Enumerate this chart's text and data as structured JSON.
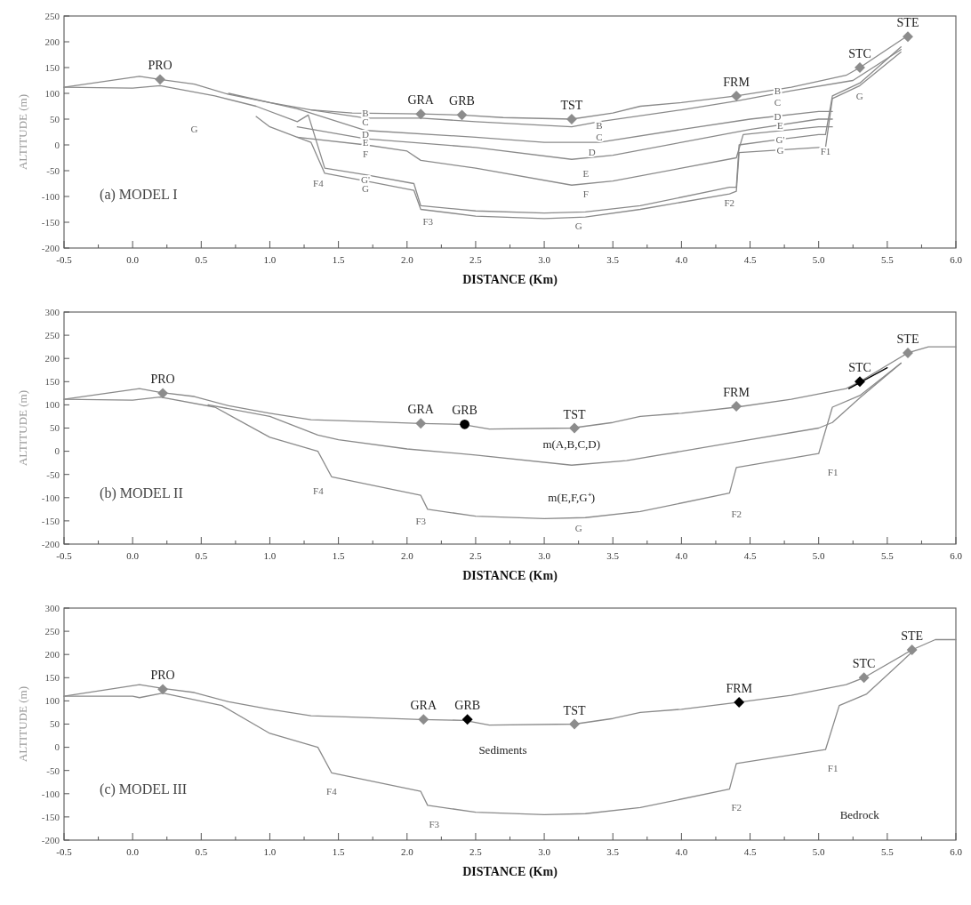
{
  "chart_data": [
    {
      "type": "line",
      "xlabel": "DISTANCE (Km)",
      "ylabel": "ALTITUDE (m)",
      "xlim": [
        -0.5,
        6.0
      ],
      "ylim": [
        -200,
        250
      ],
      "xticks": [
        {
          "value": -0.5,
          "label": "-0.5"
        },
        {
          "value": -0.25,
          "label": null
        },
        {
          "value": 0,
          "label": "0.0"
        },
        {
          "value": 0.25,
          "label": null
        },
        {
          "value": 0.5,
          "label": "0.5"
        },
        {
          "value": 0.75,
          "label": null
        },
        {
          "value": 1,
          "label": "1.0"
        },
        {
          "value": 1.25,
          "label": null
        },
        {
          "value": 1.5,
          "label": "1.5"
        },
        {
          "value": 1.75,
          "label": null
        },
        {
          "value": 2,
          "label": "2.0"
        },
        {
          "value": 2.25,
          "label": null
        },
        {
          "value": 2.5,
          "label": "2.5"
        },
        {
          "value": 2.75,
          "label": null
        },
        {
          "value": 3,
          "label": "3.0"
        },
        {
          "value": 3.25,
          "label": null
        },
        {
          "value": 3.5,
          "label": "3.5"
        },
        {
          "value": 3.75,
          "label": null
        },
        {
          "value": 4,
          "label": "4.0"
        },
        {
          "value": 4.25,
          "label": null
        },
        {
          "value": 4.5,
          "label": "4.5"
        },
        {
          "value": 4.75,
          "label": null
        },
        {
          "value": 5,
          "label": "5.0"
        },
        {
          "value": 5.25,
          "label": null
        },
        {
          "value": 5.5,
          "label": "5.5"
        },
        {
          "value": 5.75,
          "label": null
        },
        {
          "value": 6,
          "label": "6.0"
        }
      ],
      "yticks": [
        -200,
        -150,
        -100,
        -50,
        0,
        50,
        100,
        150,
        200,
        250
      ],
      "series": [
        {
          "color": "#8a8a8a",
          "x": [
            -0.5,
            0.05,
            0.2,
            0.45,
            0.7,
            1.0,
            1.3,
            1.6,
            2.1,
            2.4,
            2.7,
            3.2,
            3.5,
            3.7,
            4.0,
            4.4,
            4.8,
            5.2,
            5.3,
            5.65
          ],
          "values": [
            112,
            133,
            127,
            118,
            98,
            82,
            68,
            62,
            60,
            58,
            53,
            50,
            62,
            75,
            82,
            95,
            112,
            135,
            150,
            212
          ]
        },
        {
          "color": "#8a8a8a",
          "x": [
            1.3,
            1.7,
            2.1,
            2.5,
            3.2,
            3.4,
            4.0,
            4.4,
            4.8,
            5.25,
            5.6
          ],
          "values": [
            68,
            52,
            52,
            45,
            35,
            45,
            68,
            85,
            105,
            125,
            185
          ]
        },
        {
          "color": "#8a8a8a",
          "x": [
            0.7,
            1.2,
            1.7,
            2.5,
            3.0,
            3.4,
            4.0,
            4.5,
            5.0,
            5.1
          ],
          "values": [
            100,
            70,
            28,
            15,
            5,
            5,
            30,
            50,
            65,
            65
          ]
        },
        {
          "color": "#8a8a8a",
          "x": [
            1.2,
            1.7,
            2.5,
            3.2,
            3.5,
            4.0,
            4.5,
            5.0,
            5.1
          ],
          "values": [
            35,
            12,
            -5,
            -28,
            -20,
            5,
            30,
            50,
            50
          ]
        },
        {
          "color": "#8a8a8a",
          "x": [
            1.2,
            1.7,
            2.0,
            2.1,
            2.5,
            3.2,
            3.5,
            4.0,
            4.4,
            4.45,
            5.0,
            5.1
          ],
          "values": [
            15,
            0,
            -12,
            -30,
            -45,
            -78,
            -70,
            -45,
            -25,
            20,
            35,
            35
          ]
        },
        {
          "color": "#8a8a8a",
          "x": [
            -0.5,
            0.0,
            0.2,
            0.6,
            0.9,
            1.2,
            1.28,
            1.4,
            1.7,
            2.05,
            2.1,
            2.5,
            3.0,
            3.3,
            3.7,
            4.35,
            4.4,
            4.42,
            4.7,
            5.0,
            5.05,
            5.1,
            5.3,
            5.6
          ],
          "values": [
            112,
            110,
            115,
            95,
            75,
            45,
            58,
            -45,
            -58,
            -75,
            -118,
            -128,
            -132,
            -130,
            -118,
            -82,
            -82,
            0,
            10,
            20,
            20,
            95,
            120,
            190
          ]
        },
        {
          "color": "#8a8a8a",
          "x": [
            0.9,
            1.0,
            1.2,
            1.3,
            1.4,
            1.7,
            2.05,
            2.1,
            2.5,
            3.0,
            3.3,
            3.7,
            4.35,
            4.4,
            4.42,
            5.0,
            5.05,
            5.1,
            5.3,
            5.6
          ],
          "values": [
            55,
            35,
            15,
            5,
            -55,
            -70,
            -88,
            -125,
            -138,
            -143,
            -140,
            -125,
            -95,
            -90,
            -15,
            -5,
            -5,
            90,
            115,
            180
          ]
        },
        {
          "type": "scatter",
          "marker": "diamond",
          "color": "#8c8c8c",
          "x": [
            0.2,
            2.1,
            2.4,
            3.2,
            4.4,
            5.3,
            5.65
          ],
          "values": [
            127,
            60,
            58,
            50,
            95,
            150,
            210
          ]
        }
      ],
      "annotations": [
        "(a) MODEL I",
        {
          "text": "PRO",
          "x": 0.2,
          "y": 127
        },
        {
          "text": "GRA",
          "x": 2.1,
          "y": 60
        },
        {
          "text": "GRB",
          "x": 2.4,
          "y": 58
        },
        {
          "text": "TST",
          "x": 3.2,
          "y": 50
        },
        {
          "text": "FRM",
          "x": 4.4,
          "y": 95
        },
        {
          "text": "STC",
          "x": 5.3,
          "y": 150
        },
        {
          "text": "STE",
          "x": 5.65,
          "y": 210
        },
        "G",
        "B",
        "C",
        "D",
        "E",
        "F",
        "G'",
        "G",
        "F4",
        "F3",
        "B",
        "C",
        "D",
        "E",
        "F",
        "G",
        "F2",
        "B",
        "C",
        "D",
        "E",
        "G'",
        "G",
        "F1",
        "G"
      ]
    },
    {
      "type": "line",
      "xlabel": "DISTANCE (Km)",
      "ylabel": "ALTITUDE (m)",
      "xlim": [
        -0.5,
        6.0
      ],
      "ylim": [
        -200,
        300
      ],
      "xticks": [
        {
          "value": -0.5,
          "label": "-0.5"
        },
        {
          "value": -0.25,
          "label": null
        },
        {
          "value": 0,
          "label": "0.0"
        },
        {
          "value": 0.25,
          "label": null
        },
        {
          "value": 0.5,
          "label": "0.5"
        },
        {
          "value": 0.75,
          "label": null
        },
        {
          "value": 1,
          "label": "1.0"
        },
        {
          "value": 1.25,
          "label": null
        },
        {
          "value": 1.5,
          "label": "1.5"
        },
        {
          "value": 1.75,
          "label": null
        },
        {
          "value": 2,
          "label": "2.0"
        },
        {
          "value": 2.25,
          "label": null
        },
        {
          "value": 2.5,
          "label": "2.5"
        },
        {
          "value": 2.75,
          "label": null
        },
        {
          "value": 3,
          "label": "3.0"
        },
        {
          "value": 3.25,
          "label": null
        },
        {
          "value": 3.5,
          "label": "3.5"
        },
        {
          "value": 3.75,
          "label": null
        },
        {
          "value": 4,
          "label": "4.0"
        },
        {
          "value": 4.25,
          "label": null
        },
        {
          "value": 4.5,
          "label": "4.5"
        },
        {
          "value": 4.75,
          "label": null
        },
        {
          "value": 5,
          "label": "5.0"
        },
        {
          "value": 5.25,
          "label": null
        },
        {
          "value": 5.5,
          "label": "5.5"
        },
        {
          "value": 5.75,
          "label": null
        },
        {
          "value": 6,
          "label": "6.0"
        }
      ],
      "yticks": [
        -200,
        -150,
        -100,
        -50,
        0,
        50,
        100,
        150,
        200,
        250,
        300
      ],
      "series": [
        {
          "color": "#8a8a8a",
          "x": [
            -0.5,
            0.05,
            0.2,
            0.45,
            0.7,
            1.0,
            1.3,
            1.6,
            2.1,
            2.4,
            2.6,
            3.2,
            3.5,
            3.7,
            4.0,
            4.4,
            4.8,
            5.2,
            5.3,
            5.65,
            5.8,
            6.0
          ],
          "values": [
            112,
            135,
            127,
            118,
            98,
            82,
            68,
            65,
            60,
            58,
            48,
            50,
            62,
            75,
            82,
            95,
            112,
            135,
            150,
            212,
            225,
            225
          ]
        },
        {
          "color": "#8a8a8a",
          "x": [
            0.55,
            1.0,
            1.35,
            1.5,
            2.0,
            2.5,
            3.2,
            3.6,
            4.0,
            4.4,
            5.0,
            5.1,
            5.3,
            5.6
          ],
          "values": [
            100,
            75,
            35,
            25,
            5,
            -8,
            -30,
            -20,
            0,
            20,
            50,
            62,
            115,
            190
          ]
        },
        {
          "color": "#8a8a8a",
          "x": [
            -0.5,
            0.0,
            0.2,
            0.6,
            1.0,
            1.35,
            1.45,
            2.1,
            2.15,
            2.5,
            3.0,
            3.3,
            3.7,
            4.35,
            4.4,
            5.0,
            5.1,
            5.3,
            5.6
          ],
          "values": [
            112,
            110,
            117,
            95,
            30,
            0,
            -55,
            -95,
            -125,
            -140,
            -145,
            -143,
            -130,
            -90,
            -35,
            -5,
            95,
            120,
            190
          ]
        },
        {
          "color": "#000000",
          "x": [
            5.22,
            5.5
          ],
          "values": [
            135,
            180
          ]
        },
        {
          "type": "scatter",
          "marker": "diamond",
          "color": "#8c8c8c",
          "x": [
            0.22,
            2.1,
            3.22,
            4.4,
            5.65
          ],
          "values": [
            125,
            60,
            50,
            97,
            212
          ]
        },
        {
          "type": "scatter",
          "marker": "circle",
          "color": "#000000",
          "x": [
            2.42
          ],
          "values": [
            58
          ]
        },
        {
          "type": "scatter",
          "marker": "diamond",
          "color": "#000000",
          "x": [
            5.3
          ],
          "values": [
            150
          ]
        }
      ],
      "annotations": [
        "(b) MODEL II",
        {
          "text": "PRO",
          "x": 0.22,
          "y": 125
        },
        {
          "text": "GRA",
          "x": 2.1,
          "y": 60
        },
        {
          "text": "GRB",
          "x": 2.42,
          "y": 58
        },
        {
          "text": "TST",
          "x": 3.22,
          "y": 50
        },
        {
          "text": "FRM",
          "x": 4.4,
          "y": 97
        },
        {
          "text": "STC",
          "x": 5.3,
          "y": 150
        },
        {
          "text": "STE",
          "x": 5.65,
          "y": 212
        },
        "m(A,B,C,D)",
        "m(E,F,G⁺)",
        "F4",
        "F3",
        "G",
        "F2",
        "F1"
      ]
    },
    {
      "type": "line",
      "xlabel": "DISTANCE (Km)",
      "ylabel": "ALTITUDE (m)",
      "xlim": [
        -0.5,
        6.0
      ],
      "ylim": [
        -200,
        300
      ],
      "xticks": [
        {
          "value": -0.5,
          "label": "-0.5"
        },
        {
          "value": -0.25,
          "label": null
        },
        {
          "value": 0,
          "label": "0.0"
        },
        {
          "value": 0.25,
          "label": null
        },
        {
          "value": 0.5,
          "label": "0.5"
        },
        {
          "value": 0.75,
          "label": null
        },
        {
          "value": 1,
          "label": "1.0"
        },
        {
          "value": 1.25,
          "label": null
        },
        {
          "value": 1.5,
          "label": "1.5"
        },
        {
          "value": 1.75,
          "label": null
        },
        {
          "value": 2,
          "label": "2.0"
        },
        {
          "value": 2.25,
          "label": null
        },
        {
          "value": 2.5,
          "label": "2.5"
        },
        {
          "value": 2.75,
          "label": null
        },
        {
          "value": 3,
          "label": "3.0"
        },
        {
          "value": 3.25,
          "label": null
        },
        {
          "value": 3.5,
          "label": "3.5"
        },
        {
          "value": 3.75,
          "label": null
        },
        {
          "value": 4,
          "label": "4.0"
        },
        {
          "value": 4.25,
          "label": null
        },
        {
          "value": 4.5,
          "label": "4.5"
        },
        {
          "value": 4.75,
          "label": null
        },
        {
          "value": 5,
          "label": "5.0"
        },
        {
          "value": 5.25,
          "label": null
        },
        {
          "value": 5.5,
          "label": "5.5"
        },
        {
          "value": 5.75,
          "label": null
        },
        {
          "value": 6,
          "label": "6.0"
        }
      ],
      "yticks": [
        -200,
        -150,
        -100,
        -50,
        0,
        50,
        100,
        150,
        200,
        250,
        300
      ],
      "series": [
        {
          "color": "#8a8a8a",
          "x": [
            -0.5,
            0.05,
            0.22,
            0.45,
            0.7,
            1.0,
            1.3,
            1.6,
            2.1,
            2.42,
            2.6,
            3.22,
            3.5,
            3.7,
            4.0,
            4.42,
            4.8,
            5.2,
            5.33,
            5.68,
            5.85,
            6.0
          ],
          "values": [
            110,
            135,
            127,
            118,
            98,
            82,
            68,
            65,
            60,
            58,
            48,
            50,
            62,
            75,
            82,
            97,
            112,
            135,
            150,
            210,
            232,
            232
          ]
        },
        {
          "color": "#8a8a8a",
          "x": [
            -0.5,
            0.0,
            0.05,
            0.22,
            0.65,
            1.0,
            1.35,
            1.45,
            2.1,
            2.15,
            2.5,
            3.0,
            3.3,
            3.7,
            4.35,
            4.4,
            5.05,
            5.15,
            5.35,
            5.68
          ],
          "values": [
            110,
            110,
            107,
            117,
            90,
            30,
            0,
            -55,
            -95,
            -125,
            -140,
            -145,
            -143,
            -130,
            -90,
            -35,
            -5,
            90,
            115,
            205
          ]
        },
        {
          "type": "scatter",
          "marker": "diamond",
          "color": "#8c8c8c",
          "x": [
            0.22,
            2.12,
            3.22,
            5.33,
            5.68
          ],
          "values": [
            125,
            60,
            50,
            150,
            210
          ]
        },
        {
          "type": "scatter",
          "marker": "diamond",
          "color": "#000000",
          "x": [
            2.44,
            4.42
          ],
          "values": [
            60,
            97
          ]
        }
      ],
      "annotations": [
        "(c) MODEL III",
        {
          "text": "PRO",
          "x": 0.22,
          "y": 125
        },
        {
          "text": "GRA",
          "x": 2.12,
          "y": 60
        },
        {
          "text": "GRB",
          "x": 2.44,
          "y": 60
        },
        {
          "text": "TST",
          "x": 3.22,
          "y": 50
        },
        {
          "text": "FRM",
          "x": 4.42,
          "y": 97
        },
        {
          "text": "STC",
          "x": 5.33,
          "y": 150
        },
        {
          "text": "STE",
          "x": 5.68,
          "y": 210
        },
        "Sediments",
        "Bedrock",
        "F4",
        "F3",
        "F2",
        "F1"
      ]
    }
  ]
}
